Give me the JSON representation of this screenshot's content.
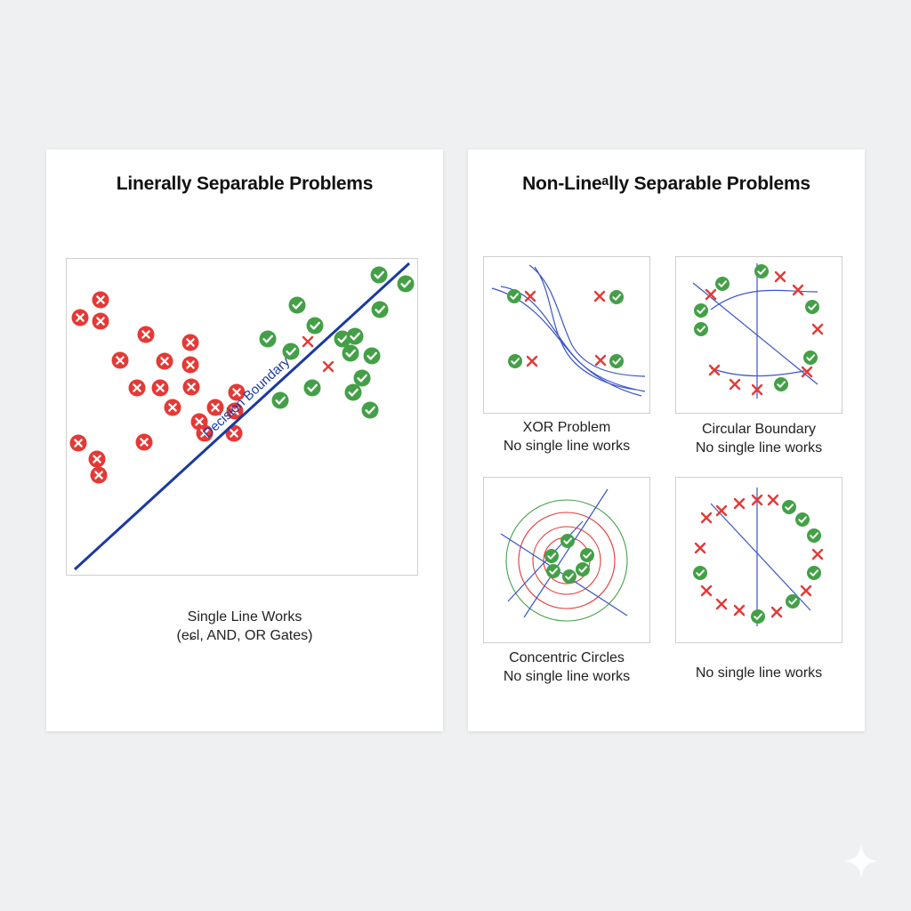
{
  "left": {
    "title": "Linerally Separable Problems",
    "boundary_label": "Decision Boundary",
    "caption_line1": "Single Line Works",
    "caption_line2": "(eɕl, AND, OR Gates)"
  },
  "right": {
    "title": "Non-Lineᵃlly Separable Problems",
    "panels": [
      {
        "line1": "XOR Problem",
        "line2": "No single line works"
      },
      {
        "line1": "Circular Boundary",
        "line2": "No single line works"
      },
      {
        "line1": "Concentric Circles",
        "line2": "No single line works"
      },
      {
        "line1": "",
        "line2": "No single line works"
      }
    ]
  },
  "legend_markers": {
    "positive": "check-circle-icon",
    "negative": "cross-icon"
  },
  "colors": {
    "positive": "#43a047",
    "negative": "#e53935",
    "boundary": "#1a3aa0",
    "curve": "#3a55c8"
  }
}
